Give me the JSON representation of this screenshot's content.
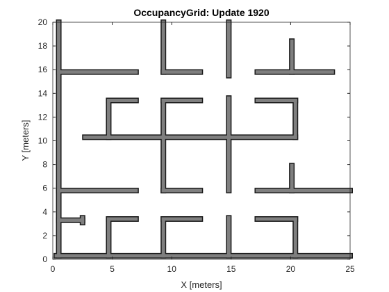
{
  "chart_data": {
    "type": "heatmap",
    "title": "OccupancyGrid: Update 1920",
    "xlabel": "X [meters]",
    "ylabel": "Y [meters]",
    "xlim": [
      0,
      25
    ],
    "ylim": [
      0,
      20
    ],
    "xticks": [
      "0",
      "5",
      "10",
      "15",
      "20",
      "25"
    ],
    "yticks": [
      "0",
      "2",
      "4",
      "6",
      "8",
      "10",
      "12",
      "14",
      "16",
      "18",
      "20"
    ],
    "grid": false,
    "colors": {
      "occupied": "#7f7f7f",
      "free": "#ffffff",
      "edge": "#1a1a1a"
    },
    "walls": [
      {
        "x1": 0.3,
        "y1": 0.3,
        "x2": 25.0,
        "y2": 0.3
      },
      {
        "x1": 0.5,
        "y1": 0.3,
        "x2": 0.5,
        "y2": 20.0
      },
      {
        "x1": 0.5,
        "y1": 3.3,
        "x2": 2.5,
        "y2": 3.3
      },
      {
        "x1": 2.5,
        "y1": 3.1,
        "x2": 2.5,
        "y2": 3.5
      },
      {
        "x1": 4.7,
        "y1": 0.3,
        "x2": 4.7,
        "y2": 3.4
      },
      {
        "x1": 4.7,
        "y1": 3.4,
        "x2": 7.0,
        "y2": 3.4
      },
      {
        "x1": 9.3,
        "y1": 0.3,
        "x2": 9.3,
        "y2": 3.4
      },
      {
        "x1": 9.3,
        "y1": 3.4,
        "x2": 12.4,
        "y2": 3.4
      },
      {
        "x1": 14.8,
        "y1": 0.3,
        "x2": 14.8,
        "y2": 3.5
      },
      {
        "x1": 17.2,
        "y1": 3.4,
        "x2": 20.4,
        "y2": 3.4
      },
      {
        "x1": 20.4,
        "y1": 0.3,
        "x2": 20.4,
        "y2": 3.4
      },
      {
        "x1": 0.5,
        "y1": 5.8,
        "x2": 7.0,
        "y2": 5.8
      },
      {
        "x1": 9.3,
        "y1": 5.8,
        "x2": 12.4,
        "y2": 5.8
      },
      {
        "x1": 9.3,
        "y1": 5.8,
        "x2": 9.3,
        "y2": 13.4
      },
      {
        "x1": 9.3,
        "y1": 13.4,
        "x2": 12.4,
        "y2": 13.4
      },
      {
        "x1": 14.8,
        "y1": 5.8,
        "x2": 14.8,
        "y2": 13.6
      },
      {
        "x1": 17.2,
        "y1": 5.8,
        "x2": 25.0,
        "y2": 5.8
      },
      {
        "x1": 20.1,
        "y1": 5.8,
        "x2": 20.1,
        "y2": 7.9
      },
      {
        "x1": 2.7,
        "y1": 10.3,
        "x2": 20.4,
        "y2": 10.3
      },
      {
        "x1": 4.7,
        "y1": 10.3,
        "x2": 4.7,
        "y2": 13.4
      },
      {
        "x1": 4.7,
        "y1": 13.4,
        "x2": 7.0,
        "y2": 13.4
      },
      {
        "x1": 17.2,
        "y1": 13.4,
        "x2": 20.4,
        "y2": 13.4
      },
      {
        "x1": 20.4,
        "y1": 10.3,
        "x2": 20.4,
        "y2": 13.4
      },
      {
        "x1": 0.5,
        "y1": 15.8,
        "x2": 7.0,
        "y2": 15.8
      },
      {
        "x1": 9.3,
        "y1": 15.8,
        "x2": 12.4,
        "y2": 15.8
      },
      {
        "x1": 9.3,
        "y1": 15.8,
        "x2": 9.3,
        "y2": 20.0
      },
      {
        "x1": 14.8,
        "y1": 15.5,
        "x2": 14.8,
        "y2": 20.0
      },
      {
        "x1": 17.2,
        "y1": 15.8,
        "x2": 23.5,
        "y2": 15.8
      },
      {
        "x1": 20.1,
        "y1": 15.8,
        "x2": 20.1,
        "y2": 18.4
      }
    ]
  }
}
